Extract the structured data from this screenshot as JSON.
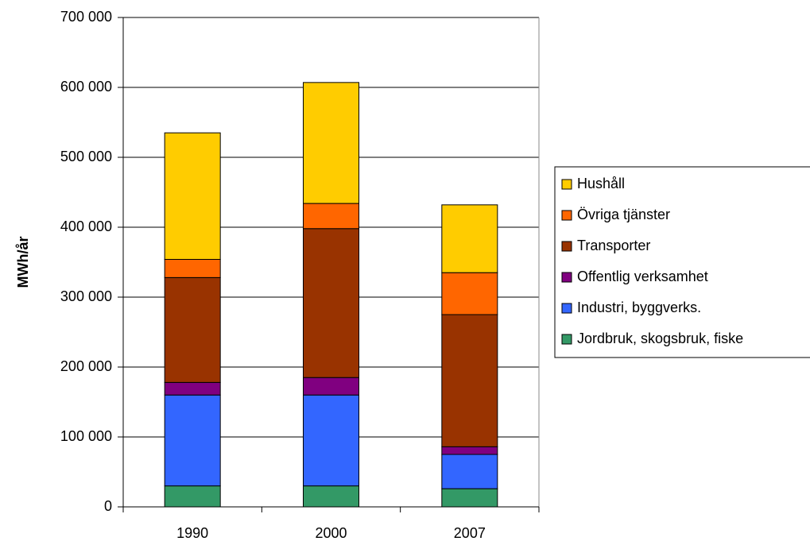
{
  "chart_data": {
    "type": "stacked_bar",
    "y_label": "MWh/år",
    "categories": [
      "1990",
      "2000",
      "2007"
    ],
    "series": [
      {
        "name": "Jordbruk, skogsbruk, fiske",
        "color": "#339966",
        "values": [
          30000,
          30000,
          26000
        ]
      },
      {
        "name": "Industri, byggverks.",
        "color": "#3366FF",
        "values": [
          130000,
          130000,
          49000
        ]
      },
      {
        "name": "Offentlig verksamhet",
        "color": "#800080",
        "values": [
          18000,
          25000,
          11000
        ]
      },
      {
        "name": "Transporter",
        "color": "#993300",
        "values": [
          150000,
          213000,
          189000
        ]
      },
      {
        "name": "Övriga tjänster",
        "color": "#FF6600",
        "values": [
          26000,
          36000,
          60000
        ]
      },
      {
        "name": "Hushåll",
        "color": "#FFCC00",
        "values": [
          181000,
          173000,
          97000
        ]
      }
    ],
    "ylim": [
      0,
      700000
    ],
    "yticks": [
      0,
      {
        "value": 100000,
        "label": "100 000"
      },
      {
        "value": 200000,
        "label": "200 000"
      },
      {
        "value": 300000,
        "label": "300 000"
      },
      {
        "value": 400000,
        "label": "400 000"
      },
      {
        "value": 500000,
        "label": "500 000"
      },
      {
        "value": 600000,
        "label": "600 000"
      },
      {
        "value": 700000,
        "label": "700 000"
      }
    ],
    "grid": true,
    "legend": "right"
  }
}
